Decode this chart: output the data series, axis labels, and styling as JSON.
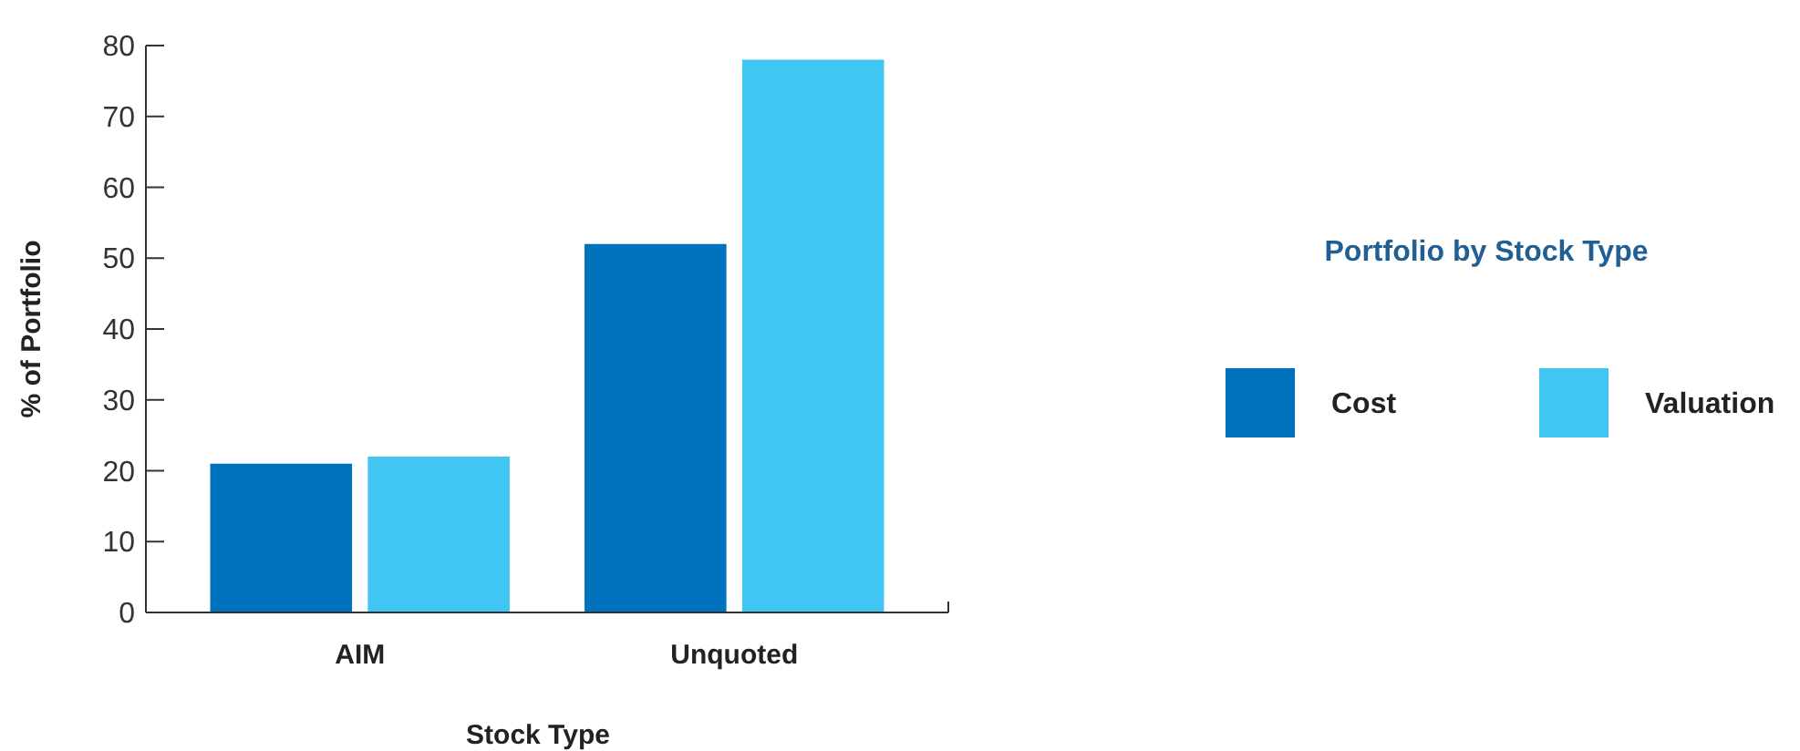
{
  "chart_data": {
    "type": "bar",
    "xlabel": "Stock Type",
    "ylabel": "% of Portfolio",
    "legend_title": "Portfolio by Stock Type",
    "categories": [
      "AIM",
      "Unquoted"
    ],
    "series": [
      {
        "name": "Cost",
        "color": "#0071bc",
        "values": [
          21,
          52
        ]
      },
      {
        "name": "Valuation",
        "color": "#41c6f4",
        "values": [
          22,
          78
        ]
      }
    ],
    "ylim": [
      0,
      80
    ],
    "yticks": [
      0,
      10,
      20,
      30,
      40,
      50,
      60,
      70,
      80
    ],
    "legend": "right"
  }
}
